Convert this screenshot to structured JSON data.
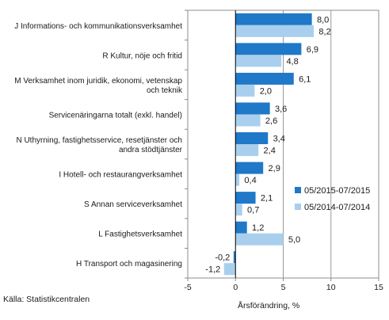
{
  "chart_data": {
    "type": "bar",
    "orientation": "horizontal",
    "categories": [
      [
        "J Informations- och kommunikationsverksamhet"
      ],
      [
        "R Kultur, nöje och fritid"
      ],
      [
        "M Verksamhet inom juridik, ekonomi, vetenskap",
        "och teknik"
      ],
      [
        "Servicenäringarna totalt (exkl. handel)"
      ],
      [
        "N Uthyrning, fastighetsservice, resetjänster och",
        "andra stödtjänster"
      ],
      [
        "I Hotell- och restaurangverksamhet"
      ],
      [
        "S Annan serviceverksamhet"
      ],
      [
        "L Fastighetsverksamhet"
      ],
      [
        "H Transport och magasinering"
      ]
    ],
    "series": [
      {
        "name": "05/2015-07/2015",
        "color": "#1f78c8",
        "values": [
          8.0,
          6.9,
          6.1,
          3.6,
          3.4,
          2.9,
          2.1,
          1.2,
          -0.2
        ],
        "labels": [
          "8,0",
          "6,9",
          "6,1",
          "3,6",
          "3,4",
          "2,9",
          "2,1",
          "1,2",
          "-0,2"
        ]
      },
      {
        "name": "05/2014-07/2014",
        "color": "#a8cfee",
        "values": [
          8.2,
          4.8,
          2.0,
          2.6,
          2.4,
          0.4,
          0.7,
          5.0,
          -1.2
        ],
        "labels": [
          "8,2",
          "4,8",
          "2,0",
          "2,6",
          "2,4",
          "0,4",
          "0,7",
          "5,0",
          "-1,2"
        ]
      }
    ],
    "xlim": [
      -5,
      15
    ],
    "xticks": [
      -5,
      0,
      5,
      10,
      15
    ],
    "xtick_labels": [
      "-5",
      "0",
      "5",
      "10",
      "15"
    ],
    "xlabel": "Årsförändring, %",
    "grid": "vertical",
    "legend_position": "right"
  },
  "source": "Källa:  Statistikcentralen"
}
